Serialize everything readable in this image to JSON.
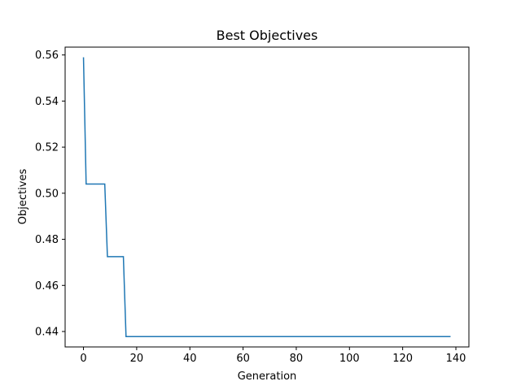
{
  "chart_data": {
    "type": "line",
    "title": "Best Objectives",
    "xlabel": "Generation",
    "ylabel": "Objectives",
    "xlim": [
      -6.9,
      144.9
    ],
    "ylim": [
      0.4333,
      0.5634
    ],
    "xticks": [
      0,
      20,
      40,
      60,
      80,
      100,
      120,
      140
    ],
    "yticks": [
      0.44,
      0.46,
      0.48,
      0.5,
      0.52,
      0.54,
      0.56
    ],
    "ytick_labels": [
      "0.44",
      "0.46",
      "0.48",
      "0.50",
      "0.52",
      "0.54",
      "0.56"
    ],
    "grid": false,
    "line_color": "#1f77b4",
    "series": [
      {
        "x": [
          0,
          1,
          8,
          9,
          15,
          16,
          138
        ],
        "y": [
          0.559,
          0.504,
          0.504,
          0.4725,
          0.4725,
          0.4378,
          0.4378
        ]
      }
    ]
  }
}
